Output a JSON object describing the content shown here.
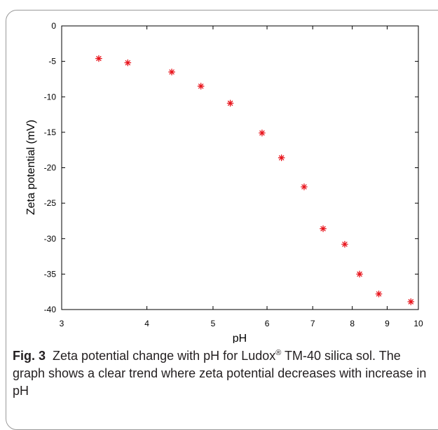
{
  "chart_data": {
    "type": "scatter",
    "title": "",
    "xlabel": "pH",
    "ylabel": "Zeta potential (mV)",
    "x_scale": "log",
    "xlim": [
      3,
      10
    ],
    "ylim": [
      -40,
      0
    ],
    "xticks": [
      3,
      4,
      5,
      6,
      7,
      8,
      9,
      10
    ],
    "yticks": [
      0,
      -5,
      -10,
      -15,
      -20,
      -25,
      -30,
      -35,
      -40
    ],
    "grid": false,
    "marker": "asterisk",
    "marker_color": "#e8141c",
    "x": [
      3.4,
      3.75,
      4.35,
      4.8,
      5.3,
      5.9,
      6.3,
      6.8,
      7.25,
      7.8,
      8.2,
      8.75,
      9.75
    ],
    "y": [
      -4.6,
      -5.2,
      -6.5,
      -8.5,
      -10.9,
      -15.1,
      -18.6,
      -22.7,
      -28.6,
      -30.8,
      -35.0,
      -37.8,
      -38.9
    ]
  },
  "caption": {
    "fig_label": "Fig. 3",
    "text_before_sup": "Zeta potential change with pH for Ludox",
    "sup": "®",
    "text_after_sup": " TM-40 silica sol. The graph shows a clear trend where zeta potential decreases with increase in pH"
  }
}
